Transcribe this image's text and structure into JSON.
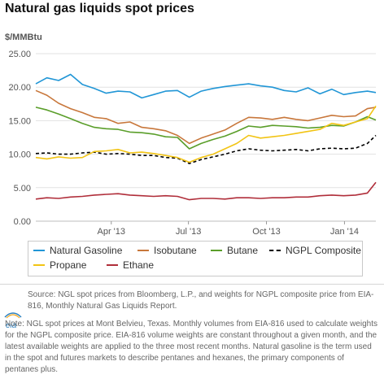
{
  "title": "Natural gas liquids spot prices",
  "unit_label": "$/MMBtu",
  "legend": [
    {
      "label": "Natural Gasoline",
      "color": "#2196d6",
      "dashed": false
    },
    {
      "label": "Isobutane",
      "color": "#c8773b",
      "dashed": false
    },
    {
      "label": "Butane",
      "color": "#5a9e2a",
      "dashed": false
    },
    {
      "label": "NGPL Composite",
      "color": "#000000",
      "dashed": true
    },
    {
      "label": "Propane",
      "color": "#f2c414",
      "dashed": false
    },
    {
      "label": "Ethane",
      "color": "#b02e3a",
      "dashed": false
    }
  ],
  "source": "Source: NGL spot prices from Bloomberg, L.P., and weights for NGPL composite price from EIA-816, Monthly Natural Gas Liquids Report.",
  "note": "Note: NGL spot prices at Mont Belvieu, Texas. Monthly volumes from EIA-816 used to calculate weights for the NGPL composite price. EIA-816 volume weights are constant throughout a given month, and the latest available weights are applied to the three most recent months. Natural gasoline is the term used in the spot and futures markets to describe pentanes and hexanes, the primary components of pentanes plus.",
  "logo_text": "eia",
  "chart_data": {
    "type": "line",
    "x_type": "date",
    "x_start": "2013-01-02",
    "x_end": "2014-02-07",
    "xticks": [
      {
        "date": "2013-04-01",
        "label": "Apr '13"
      },
      {
        "date": "2013-07-01",
        "label": "Jul '13"
      },
      {
        "date": "2013-10-01",
        "label": "Oct '13"
      },
      {
        "date": "2014-01-01",
        "label": "Jan '14"
      }
    ],
    "ylim": [
      0,
      25
    ],
    "yticks": [
      "0.00",
      "5.00",
      "10.00",
      "15.00",
      "20.00",
      "25.00"
    ],
    "grid": true,
    "xlabel": "",
    "ylabel": "$/MMBtu",
    "series": [
      {
        "name": "Natural Gasoline",
        "color": "#2196d6",
        "dashed": false,
        "points": [
          [
            "2013-01-02",
            20.5
          ],
          [
            "2013-01-15",
            21.4
          ],
          [
            "2013-01-29",
            21.0
          ],
          [
            "2013-02-12",
            21.9
          ],
          [
            "2013-02-26",
            20.4
          ],
          [
            "2013-03-12",
            19.8
          ],
          [
            "2013-03-26",
            19.1
          ],
          [
            "2013-04-09",
            19.4
          ],
          [
            "2013-04-23",
            19.3
          ],
          [
            "2013-05-07",
            18.4
          ],
          [
            "2013-05-21",
            18.9
          ],
          [
            "2013-06-04",
            19.4
          ],
          [
            "2013-06-18",
            19.5
          ],
          [
            "2013-07-02",
            18.5
          ],
          [
            "2013-07-16",
            19.4
          ],
          [
            "2013-07-30",
            19.8
          ],
          [
            "2013-08-13",
            20.1
          ],
          [
            "2013-08-27",
            20.3
          ],
          [
            "2013-09-10",
            20.5
          ],
          [
            "2013-09-24",
            20.2
          ],
          [
            "2013-10-08",
            20.0
          ],
          [
            "2013-10-22",
            19.5
          ],
          [
            "2013-11-05",
            19.3
          ],
          [
            "2013-11-19",
            19.9
          ],
          [
            "2013-12-03",
            19.0
          ],
          [
            "2013-12-17",
            19.7
          ],
          [
            "2013-12-31",
            18.9
          ],
          [
            "2014-01-14",
            19.2
          ],
          [
            "2014-01-28",
            19.4
          ],
          [
            "2014-02-07",
            19.2
          ]
        ]
      },
      {
        "name": "Isobutane",
        "color": "#c8773b",
        "dashed": false,
        "points": [
          [
            "2013-01-02",
            19.5
          ],
          [
            "2013-01-15",
            18.8
          ],
          [
            "2013-01-29",
            17.6
          ],
          [
            "2013-02-12",
            16.8
          ],
          [
            "2013-02-26",
            16.2
          ],
          [
            "2013-03-12",
            15.5
          ],
          [
            "2013-03-26",
            15.3
          ],
          [
            "2013-04-09",
            14.6
          ],
          [
            "2013-04-23",
            14.8
          ],
          [
            "2013-05-07",
            14.0
          ],
          [
            "2013-05-21",
            13.8
          ],
          [
            "2013-06-04",
            13.5
          ],
          [
            "2013-06-18",
            12.8
          ],
          [
            "2013-07-02",
            11.6
          ],
          [
            "2013-07-16",
            12.4
          ],
          [
            "2013-07-30",
            13.0
          ],
          [
            "2013-08-13",
            13.6
          ],
          [
            "2013-08-27",
            14.6
          ],
          [
            "2013-09-10",
            15.5
          ],
          [
            "2013-09-24",
            15.4
          ],
          [
            "2013-10-08",
            15.2
          ],
          [
            "2013-10-22",
            15.5
          ],
          [
            "2013-11-05",
            15.2
          ],
          [
            "2013-11-19",
            15.0
          ],
          [
            "2013-12-03",
            15.4
          ],
          [
            "2013-12-17",
            15.8
          ],
          [
            "2013-12-31",
            15.6
          ],
          [
            "2014-01-14",
            15.7
          ],
          [
            "2014-01-28",
            16.8
          ],
          [
            "2014-02-07",
            17.0
          ]
        ]
      },
      {
        "name": "Butane",
        "color": "#5a9e2a",
        "dashed": false,
        "points": [
          [
            "2013-01-02",
            17.0
          ],
          [
            "2013-01-15",
            16.6
          ],
          [
            "2013-01-29",
            16.0
          ],
          [
            "2013-02-12",
            15.3
          ],
          [
            "2013-02-26",
            14.6
          ],
          [
            "2013-03-12",
            14.0
          ],
          [
            "2013-03-26",
            13.8
          ],
          [
            "2013-04-09",
            13.7
          ],
          [
            "2013-04-23",
            13.3
          ],
          [
            "2013-05-07",
            13.2
          ],
          [
            "2013-05-21",
            13.0
          ],
          [
            "2013-06-04",
            12.6
          ],
          [
            "2013-06-18",
            12.5
          ],
          [
            "2013-07-02",
            10.8
          ],
          [
            "2013-07-16",
            11.6
          ],
          [
            "2013-07-30",
            12.2
          ],
          [
            "2013-08-13",
            12.7
          ],
          [
            "2013-08-27",
            13.4
          ],
          [
            "2013-09-10",
            14.2
          ],
          [
            "2013-09-24",
            14.0
          ],
          [
            "2013-10-08",
            14.3
          ],
          [
            "2013-10-22",
            14.2
          ],
          [
            "2013-11-05",
            14.1
          ],
          [
            "2013-11-19",
            13.9
          ],
          [
            "2013-12-03",
            14.0
          ],
          [
            "2013-12-17",
            14.3
          ],
          [
            "2013-12-31",
            14.2
          ],
          [
            "2014-01-14",
            14.8
          ],
          [
            "2014-01-28",
            15.6
          ],
          [
            "2014-02-07",
            15.1
          ]
        ]
      },
      {
        "name": "NGPL Composite",
        "color": "#000000",
        "dashed": true,
        "points": [
          [
            "2013-01-02",
            10.1
          ],
          [
            "2013-01-15",
            10.2
          ],
          [
            "2013-01-29",
            10.0
          ],
          [
            "2013-02-12",
            10.0
          ],
          [
            "2013-02-26",
            10.2
          ],
          [
            "2013-03-12",
            10.3
          ],
          [
            "2013-03-26",
            10.0
          ],
          [
            "2013-04-09",
            10.1
          ],
          [
            "2013-04-23",
            10.0
          ],
          [
            "2013-05-07",
            9.8
          ],
          [
            "2013-05-21",
            9.8
          ],
          [
            "2013-06-04",
            9.5
          ],
          [
            "2013-06-18",
            9.4
          ],
          [
            "2013-07-02",
            8.6
          ],
          [
            "2013-07-16",
            9.2
          ],
          [
            "2013-07-30",
            9.6
          ],
          [
            "2013-08-13",
            10.0
          ],
          [
            "2013-08-27",
            10.5
          ],
          [
            "2013-09-10",
            10.8
          ],
          [
            "2013-09-24",
            10.6
          ],
          [
            "2013-10-08",
            10.5
          ],
          [
            "2013-10-22",
            10.6
          ],
          [
            "2013-11-05",
            10.7
          ],
          [
            "2013-11-19",
            10.5
          ],
          [
            "2013-12-03",
            10.8
          ],
          [
            "2013-12-17",
            10.9
          ],
          [
            "2013-12-31",
            10.8
          ],
          [
            "2014-01-14",
            10.9
          ],
          [
            "2014-01-28",
            11.6
          ],
          [
            "2014-02-07",
            12.8
          ]
        ]
      },
      {
        "name": "Propane",
        "color": "#f2c414",
        "dashed": false,
        "points": [
          [
            "2013-01-02",
            9.5
          ],
          [
            "2013-01-15",
            9.3
          ],
          [
            "2013-01-29",
            9.6
          ],
          [
            "2013-02-12",
            9.4
          ],
          [
            "2013-02-26",
            9.5
          ],
          [
            "2013-03-12",
            10.4
          ],
          [
            "2013-03-26",
            10.5
          ],
          [
            "2013-04-09",
            10.7
          ],
          [
            "2013-04-23",
            10.2
          ],
          [
            "2013-05-07",
            10.3
          ],
          [
            "2013-05-21",
            10.1
          ],
          [
            "2013-06-04",
            9.8
          ],
          [
            "2013-06-18",
            9.5
          ],
          [
            "2013-07-02",
            8.8
          ],
          [
            "2013-07-16",
            9.5
          ],
          [
            "2013-07-30",
            10.0
          ],
          [
            "2013-08-13",
            10.8
          ],
          [
            "2013-08-27",
            11.6
          ],
          [
            "2013-09-10",
            12.8
          ],
          [
            "2013-09-24",
            12.4
          ],
          [
            "2013-10-08",
            12.6
          ],
          [
            "2013-10-22",
            12.8
          ],
          [
            "2013-11-05",
            13.1
          ],
          [
            "2013-11-19",
            13.4
          ],
          [
            "2013-12-03",
            13.7
          ],
          [
            "2013-12-17",
            14.6
          ],
          [
            "2013-12-31",
            14.3
          ],
          [
            "2014-01-14",
            14.8
          ],
          [
            "2014-01-28",
            15.3
          ],
          [
            "2014-02-07",
            17.2
          ]
        ]
      },
      {
        "name": "Ethane",
        "color": "#b02e3a",
        "dashed": false,
        "points": [
          [
            "2013-01-02",
            3.3
          ],
          [
            "2013-01-15",
            3.5
          ],
          [
            "2013-01-29",
            3.4
          ],
          [
            "2013-02-12",
            3.6
          ],
          [
            "2013-02-26",
            3.7
          ],
          [
            "2013-03-12",
            3.9
          ],
          [
            "2013-03-26",
            4.0
          ],
          [
            "2013-04-09",
            4.1
          ],
          [
            "2013-04-23",
            3.9
          ],
          [
            "2013-05-07",
            3.8
          ],
          [
            "2013-05-21",
            3.7
          ],
          [
            "2013-06-04",
            3.8
          ],
          [
            "2013-06-18",
            3.7
          ],
          [
            "2013-07-02",
            3.2
          ],
          [
            "2013-07-16",
            3.4
          ],
          [
            "2013-07-30",
            3.4
          ],
          [
            "2013-08-13",
            3.3
          ],
          [
            "2013-08-27",
            3.5
          ],
          [
            "2013-09-10",
            3.5
          ],
          [
            "2013-09-24",
            3.4
          ],
          [
            "2013-10-08",
            3.5
          ],
          [
            "2013-10-22",
            3.5
          ],
          [
            "2013-11-05",
            3.6
          ],
          [
            "2013-11-19",
            3.6
          ],
          [
            "2013-12-03",
            3.8
          ],
          [
            "2013-12-17",
            3.9
          ],
          [
            "2013-12-31",
            3.8
          ],
          [
            "2014-01-14",
            3.9
          ],
          [
            "2014-01-28",
            4.2
          ],
          [
            "2014-02-07",
            5.8
          ]
        ]
      }
    ]
  }
}
